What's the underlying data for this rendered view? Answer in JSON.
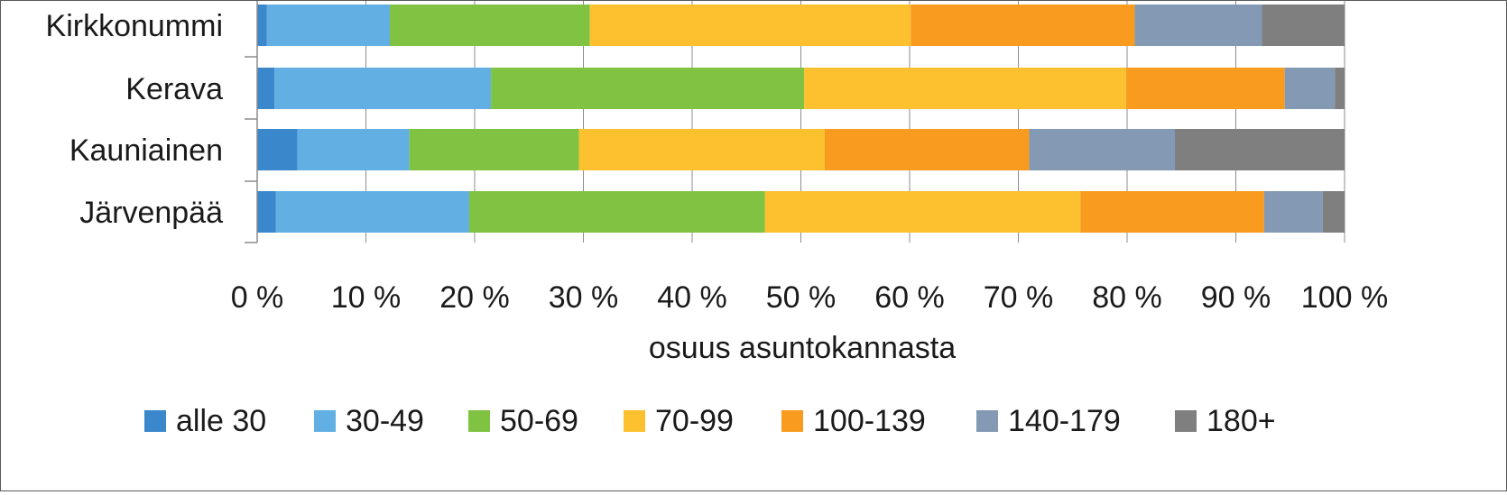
{
  "chart_data": {
    "type": "bar",
    "orientation": "horizontal",
    "stacked": "100%",
    "categories": [
      "Kirkkonummi",
      "Kerava",
      "Kauniainen",
      "Järvenpää"
    ],
    "xlabel": "osuus asuntokannasta",
    "ylabel": "",
    "title": "",
    "xlim": [
      0,
      100
    ],
    "x_ticks": [
      "0 %",
      "10 %",
      "20 %",
      "30 %",
      "40 %",
      "50 %",
      "60 %",
      "70 %",
      "80 %",
      "90 %",
      "100 %"
    ],
    "grid": true,
    "legend_position": "bottom",
    "series": [
      {
        "name": "alle 30",
        "color": "#3b87cc",
        "values": [
          0.9,
          1.6,
          3.7,
          1.7
        ]
      },
      {
        "name": "30-49",
        "color": "#62b0e3",
        "values": [
          11.3,
          19.9,
          10.3,
          17.8
        ]
      },
      {
        "name": "50-69",
        "color": "#80c242",
        "values": [
          18.4,
          28.8,
          15.6,
          27.2
        ]
      },
      {
        "name": "70-99",
        "color": "#fdc02f",
        "values": [
          29.5,
          29.6,
          22.6,
          29.0
        ]
      },
      {
        "name": "100-139",
        "color": "#f89b1f",
        "values": [
          20.6,
          14.6,
          18.8,
          16.9
        ]
      },
      {
        "name": "140-179",
        "color": "#8499b3",
        "values": [
          11.7,
          4.6,
          13.4,
          5.4
        ]
      },
      {
        "name": "180+",
        "color": "#7f7f7f",
        "values": [
          7.6,
          0.9,
          15.6,
          2.0
        ]
      }
    ]
  }
}
